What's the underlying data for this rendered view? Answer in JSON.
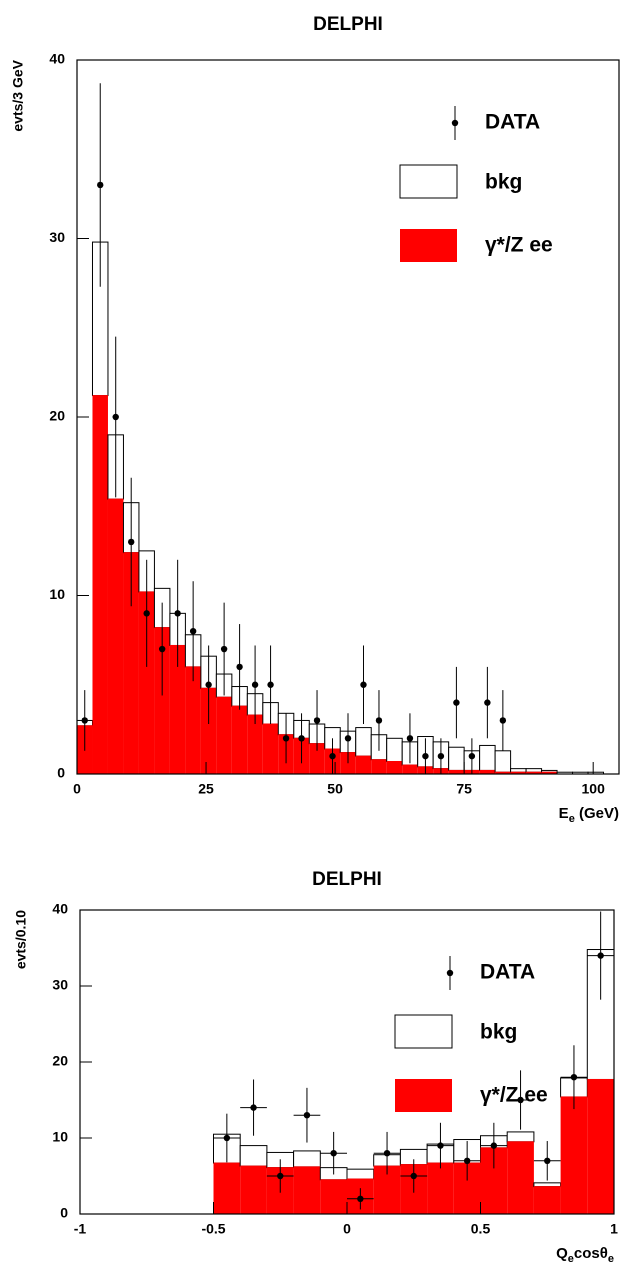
{
  "chart_data": [
    {
      "type": "histogram",
      "title": "DELPHI",
      "y_label": "evts/3 GeV",
      "x_label": [
        "E",
        "e",
        " (GeV)"
      ],
      "bins": [
        0,
        3,
        6,
        9,
        12,
        15,
        18,
        21,
        24,
        27,
        30,
        33,
        36,
        39,
        42,
        45,
        48,
        51,
        54,
        57,
        60,
        63,
        66,
        69,
        72,
        75,
        78,
        81,
        84,
        87,
        90,
        93,
        96,
        99,
        102,
        105
      ],
      "series": [
        {
          "name": "γ*/Z ee",
          "color": "#ff0000",
          "values": [
            2.7,
            21.2,
            15.4,
            12.4,
            10.2,
            8.2,
            7.2,
            6.0,
            4.8,
            4.3,
            3.8,
            3.3,
            2.8,
            2.2,
            2.0,
            1.7,
            1.4,
            1.2,
            1.0,
            0.8,
            0.7,
            0.5,
            0.4,
            0.3,
            0.2,
            0.2,
            0.2,
            0.1,
            0.1,
            0.1,
            0.1,
            0,
            0,
            0,
            0
          ]
        },
        {
          "name": "bkg",
          "color": "#ffffff",
          "values": [
            0.3,
            8.6,
            3.6,
            2.8,
            2.3,
            2.2,
            1.8,
            1.8,
            1.8,
            1.3,
            1.1,
            1.2,
            1.2,
            1.2,
            1.0,
            1.1,
            1.2,
            1.2,
            1.6,
            1.4,
            1.3,
            1.3,
            1.7,
            1.5,
            1.3,
            1.1,
            1.4,
            1.2,
            0.2,
            0.2,
            0.1,
            0.1,
            0.1,
            0.1,
            0
          ]
        }
      ],
      "data": {
        "name": "DATA",
        "color": "#000000",
        "values": [
          3,
          33,
          20,
          13,
          9,
          7,
          9,
          8,
          5,
          7,
          6,
          5,
          5,
          2,
          2,
          3,
          1,
          2,
          5,
          3,
          null,
          2,
          1,
          1,
          4,
          1,
          4,
          3,
          null,
          null,
          null,
          null,
          null,
          null,
          null
        ],
        "errors": [
          1.7,
          5.7,
          4.5,
          3.6,
          3.0,
          2.6,
          3.0,
          2.8,
          2.2,
          2.6,
          2.4,
          2.2,
          2.2,
          1.4,
          1.4,
          1.7,
          1.0,
          1.4,
          2.2,
          1.7,
          null,
          1.4,
          1.0,
          1.0,
          2.0,
          1.0,
          2.0,
          1.7,
          null,
          null,
          null,
          null,
          null,
          null,
          null
        ]
      },
      "x_error_bars": false,
      "legend": "top-right",
      "xlim": [
        0,
        105
      ],
      "ylim": [
        0,
        40
      ],
      "xticks": [
        0,
        25,
        50,
        75,
        100
      ],
      "yticks": [
        0,
        10,
        20,
        30,
        40
      ]
    },
    {
      "type": "histogram",
      "title": "DELPHI",
      "y_label": "evts/0.10",
      "x_label": [
        "Q",
        "e",
        "cosθ",
        "e"
      ],
      "bins": [
        -1,
        -0.9,
        -0.8,
        -0.7,
        -0.6,
        -0.5,
        -0.4,
        -0.3,
        -0.2,
        -0.1,
        0,
        0.1,
        0.2,
        0.3,
        0.4,
        0.5,
        0.6,
        0.7,
        0.8,
        0.9,
        1
      ],
      "series": [
        {
          "name": "γ*/Z ee",
          "color": "#ff0000",
          "values": [
            0,
            0,
            0,
            0,
            0,
            6.7,
            6.3,
            6.1,
            6.2,
            4.5,
            4.6,
            6.3,
            6.5,
            6.7,
            6.7,
            8.7,
            9.5,
            3.6,
            15.4,
            17.7
          ]
        },
        {
          "name": "bkg",
          "color": "#ffffff",
          "values": [
            0,
            0,
            0,
            0,
            0,
            3.8,
            2.7,
            2.0,
            2.1,
            1.6,
            1.3,
            1.5,
            2.0,
            2.5,
            3.1,
            1.6,
            1.3,
            0.5,
            2.5,
            17.1
          ]
        }
      ],
      "data": {
        "name": "DATA",
        "color": "#000000",
        "values": [
          null,
          null,
          null,
          null,
          null,
          10,
          14,
          5,
          13,
          8,
          2,
          8,
          5,
          9,
          7,
          9,
          15,
          7,
          18,
          34
        ],
        "errors": [
          null,
          null,
          null,
          null,
          null,
          3.2,
          3.7,
          2.2,
          3.6,
          2.8,
          1.4,
          2.8,
          2.2,
          3.0,
          2.6,
          3.0,
          3.9,
          2.6,
          4.2,
          5.8
        ]
      },
      "x_error_bars": true,
      "legend": "top-right",
      "xlim": [
        -1,
        1
      ],
      "ylim": [
        0,
        40
      ],
      "xticks": [
        -1,
        -0.5,
        0,
        0.5,
        1
      ],
      "yticks": [
        0,
        10,
        20,
        30,
        40
      ]
    }
  ]
}
